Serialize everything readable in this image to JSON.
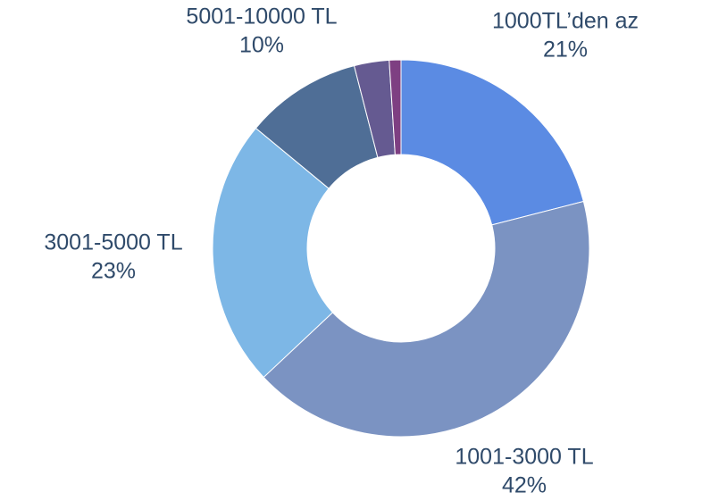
{
  "chart_data": {
    "type": "donut",
    "categories": [
      "1000TL’den az",
      "1001-3000 TL",
      "3001-5000 TL",
      "5001-10000 TL",
      null,
      null
    ],
    "values": [
      21,
      42,
      23,
      10,
      3,
      1
    ],
    "value_labels": [
      "21%",
      "42%",
      "23%",
      "10%",
      null,
      null
    ],
    "colors": [
      "#5b8be3",
      "#7b93c2",
      "#7db7e6",
      "#4f6e96",
      "#655a91",
      "#7e3f82"
    ]
  }
}
